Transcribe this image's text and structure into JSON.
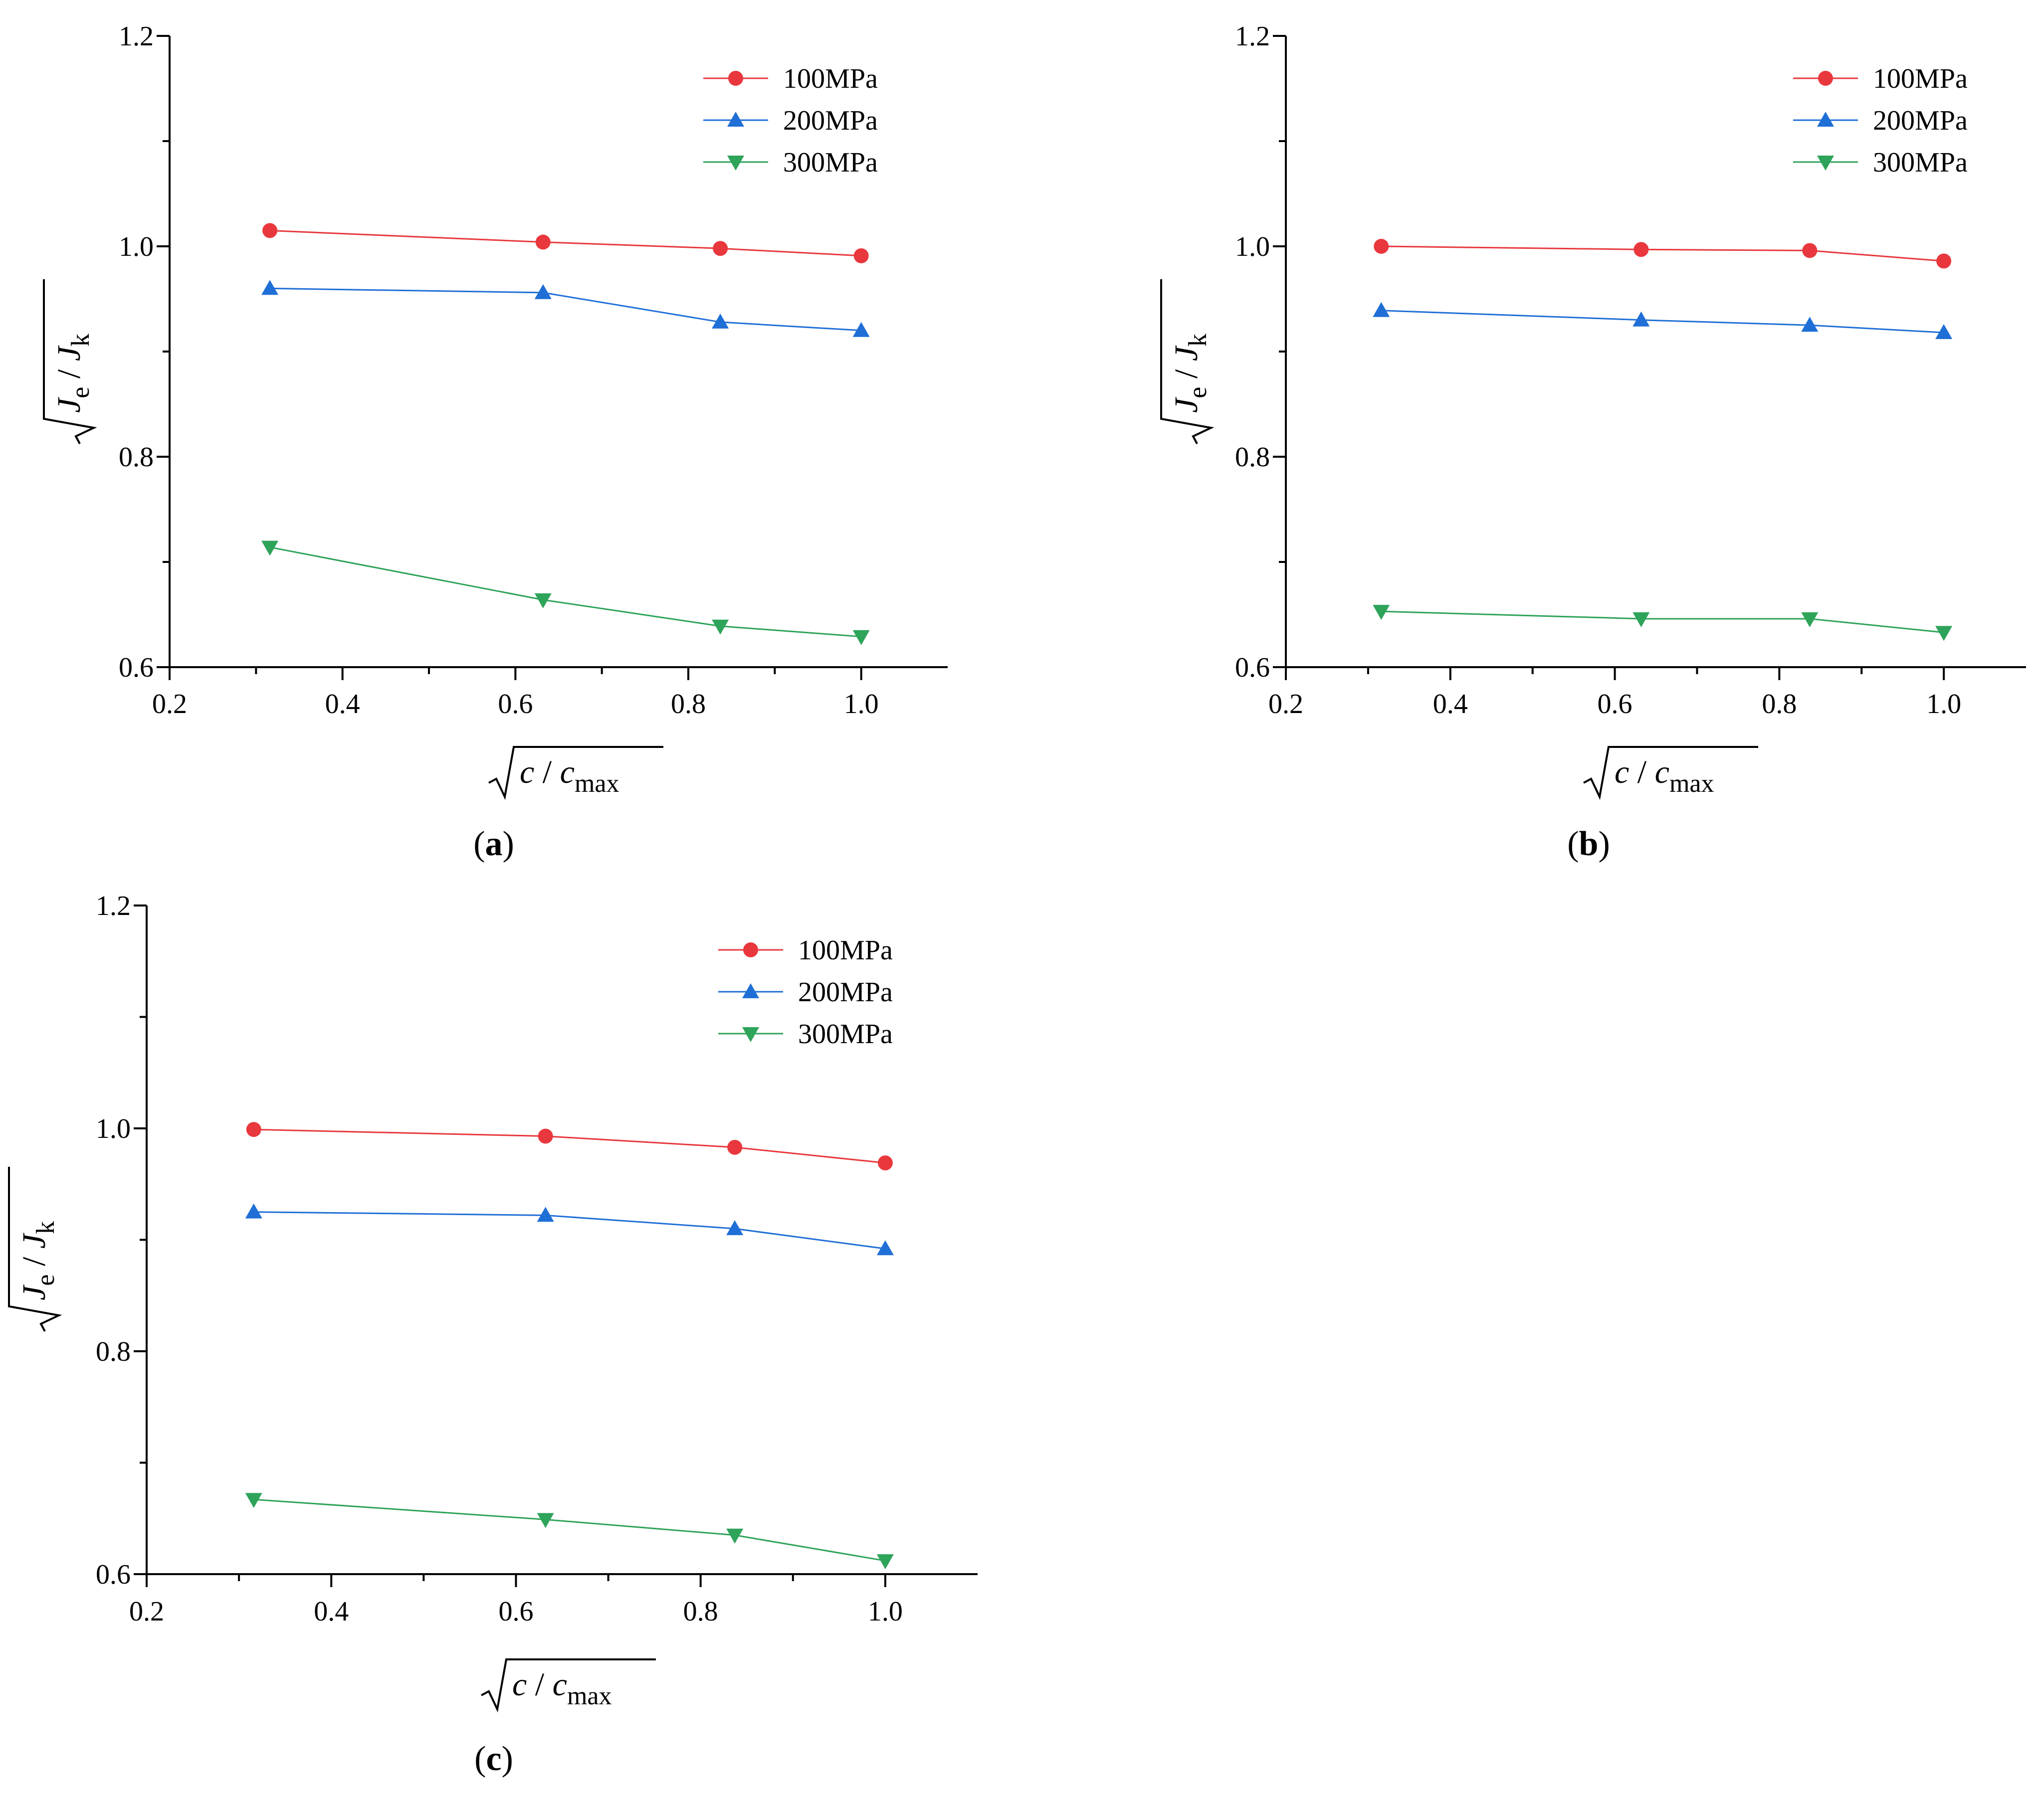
{
  "chart_data": [
    {
      "type": "line",
      "panel": "a",
      "panel_label": "(a)",
      "xlabel": "√(c / c_max)",
      "ylabel": "√(J_e / J_k)",
      "xlim": [
        0.2,
        1.1
      ],
      "ylim": [
        0.6,
        1.2
      ],
      "xticks": [
        0.2,
        0.4,
        0.6,
        0.8,
        1.0
      ],
      "xtick_labels": [
        "0.2",
        "0.4",
        "0.6",
        "0.8",
        "1.0"
      ],
      "yticks": [
        0.6,
        0.8,
        1.0,
        1.2
      ],
      "ytick_labels": [
        "0.6",
        "0.8",
        "1.0",
        "1.2"
      ],
      "legend_position": "top-right",
      "x": [
        0.316,
        0.632,
        0.837,
        1.0
      ],
      "series": [
        {
          "name": "100MPa",
          "color": "#e8383d",
          "marker": "circle",
          "values": [
            1.015,
            1.004,
            0.998,
            0.991
          ]
        },
        {
          "name": "200MPa",
          "color": "#1f6fd6",
          "marker": "triangle-up",
          "values": [
            0.96,
            0.956,
            0.928,
            0.92
          ]
        },
        {
          "name": "300MPa",
          "color": "#2ea35a",
          "marker": "triangle-down",
          "values": [
            0.714,
            0.664,
            0.639,
            0.629
          ]
        }
      ]
    },
    {
      "type": "line",
      "panel": "b",
      "panel_label": "(b)",
      "xlabel": "√(c / c_max)",
      "ylabel": "√(J_e / J_k)",
      "xlim": [
        0.2,
        1.1
      ],
      "ylim": [
        0.6,
        1.2
      ],
      "xticks": [
        0.2,
        0.4,
        0.6,
        0.8,
        1.0
      ],
      "xtick_labels": [
        "0.2",
        "0.4",
        "0.6",
        "0.8",
        "1.0"
      ],
      "yticks": [
        0.6,
        0.8,
        1.0,
        1.2
      ],
      "ytick_labels": [
        "0.6",
        "0.8",
        "1.0",
        "1.2"
      ],
      "legend_position": "top-right",
      "x": [
        0.316,
        0.632,
        0.837,
        1.0
      ],
      "series": [
        {
          "name": "100MPa",
          "color": "#e8383d",
          "marker": "circle",
          "values": [
            1.0,
            0.997,
            0.996,
            0.986
          ]
        },
        {
          "name": "200MPa",
          "color": "#1f6fd6",
          "marker": "triangle-up",
          "values": [
            0.939,
            0.93,
            0.925,
            0.918
          ]
        },
        {
          "name": "300MPa",
          "color": "#2ea35a",
          "marker": "triangle-down",
          "values": [
            0.653,
            0.646,
            0.646,
            0.633
          ]
        }
      ]
    },
    {
      "type": "line",
      "panel": "c",
      "panel_label": "(c)",
      "xlabel": "√(c / c_max)",
      "ylabel": "√(J_e / J_k)",
      "xlim": [
        0.2,
        1.1
      ],
      "ylim": [
        0.6,
        1.2
      ],
      "xticks": [
        0.2,
        0.4,
        0.6,
        0.8,
        1.0
      ],
      "xtick_labels": [
        "0.2",
        "0.4",
        "0.6",
        "0.8",
        "1.0"
      ],
      "yticks": [
        0.6,
        0.8,
        1.0,
        1.2
      ],
      "ytick_labels": [
        "0.6",
        "0.8",
        "1.0",
        "1.2"
      ],
      "legend_position": "top-right",
      "x": [
        0.316,
        0.632,
        0.837,
        1.0
      ],
      "series": [
        {
          "name": "100MPa",
          "color": "#e8383d",
          "marker": "circle",
          "values": [
            0.999,
            0.993,
            0.983,
            0.969
          ]
        },
        {
          "name": "200MPa",
          "color": "#1f6fd6",
          "marker": "triangle-up",
          "values": [
            0.925,
            0.922,
            0.91,
            0.892
          ]
        },
        {
          "name": "300MPa",
          "color": "#2ea35a",
          "marker": "triangle-down",
          "values": [
            0.667,
            0.649,
            0.635,
            0.612
          ]
        }
      ]
    }
  ]
}
